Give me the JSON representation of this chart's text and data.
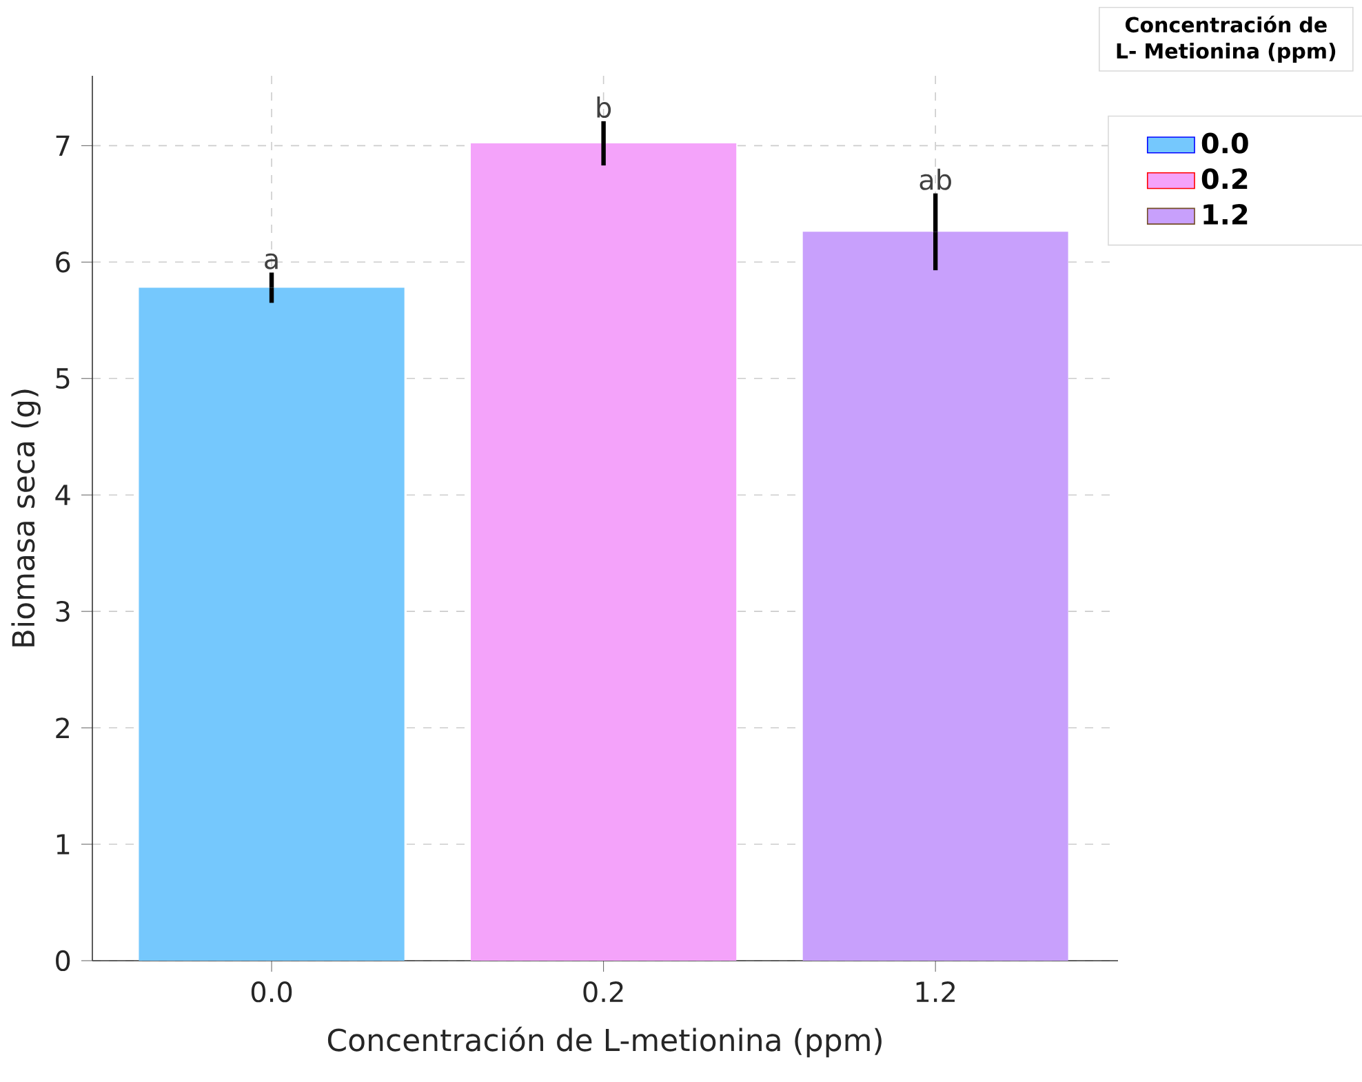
{
  "chart_data": {
    "type": "bar",
    "xlabel": "Concentración de L-metionina (ppm)",
    "ylabel": "Biomasa seca (g)",
    "legend_title": "Concentración de L- Metionina (ppm)",
    "categories": [
      "0.0",
      "0.2",
      "1.2"
    ],
    "series": [
      {
        "name": "0.0",
        "color": "#75c8fd",
        "values": [
          5.78,
          null,
          null
        ],
        "errors": [
          0.13,
          null,
          null
        ]
      },
      {
        "name": "0.2",
        "color": "#f4a3fa",
        "values": [
          null,
          7.02,
          null
        ],
        "errors": [
          null,
          0.19,
          null
        ]
      },
      {
        "name": "1.2",
        "color": "#c8a0fc",
        "values": [
          null,
          null,
          6.26
        ],
        "errors": [
          null,
          null,
          0.33
        ]
      }
    ],
    "annotations": [
      {
        "text": "a",
        "x": "0.0",
        "y": 5.91
      },
      {
        "text": "b",
        "x": "0.2",
        "y": 7.21
      },
      {
        "text": "ab",
        "x": "1.2",
        "y": 6.59
      }
    ],
    "ylim": [
      0,
      7.6
    ],
    "yticks": [
      0,
      1,
      2,
      3,
      4,
      5,
      6,
      7
    ],
    "grid": true,
    "legend": "top right"
  }
}
